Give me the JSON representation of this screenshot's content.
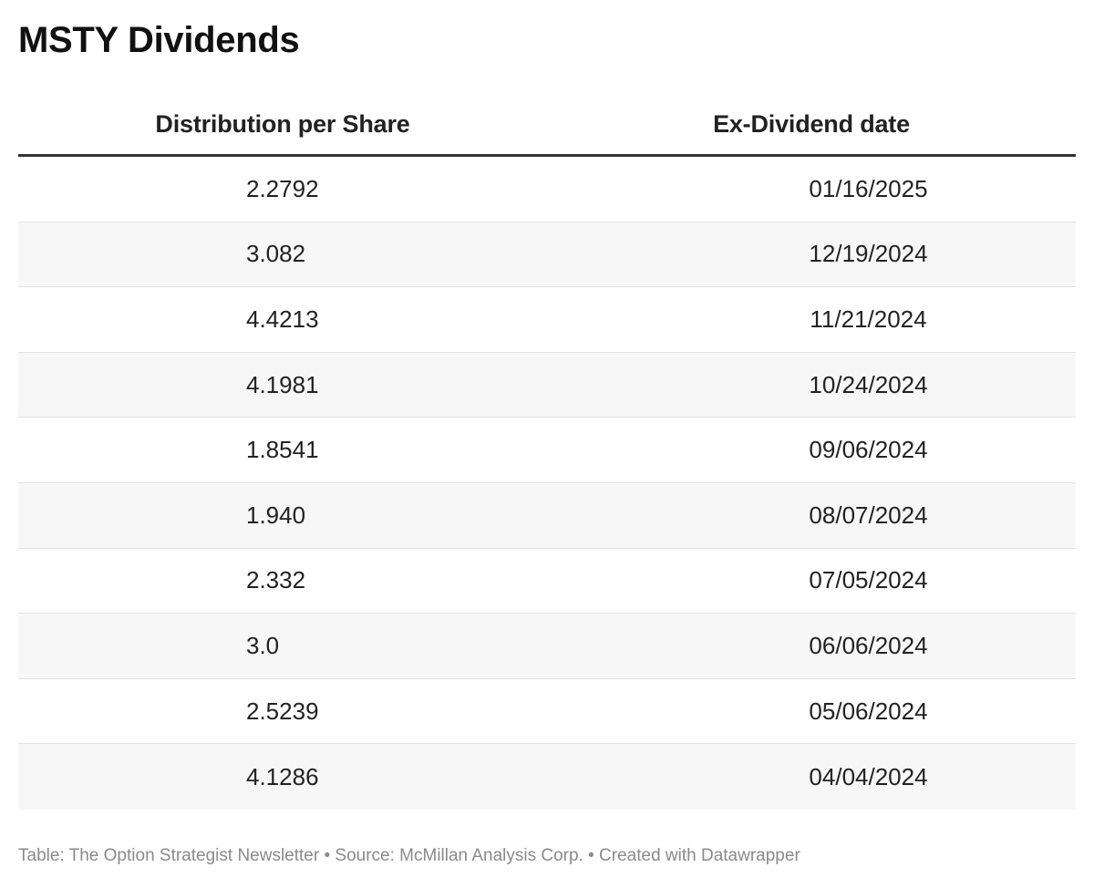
{
  "title": "MSTY Dividends",
  "chart_data": {
    "type": "table",
    "title": "MSTY Dividends",
    "columns": [
      "Distribution per Share",
      "Ex-Dividend date"
    ],
    "rows": [
      [
        "2.2792",
        "01/16/2025"
      ],
      [
        "3.082",
        "12/19/2024"
      ],
      [
        "4.4213",
        "11/21/2024"
      ],
      [
        "4.1981",
        "10/24/2024"
      ],
      [
        "1.8541",
        "09/06/2024"
      ],
      [
        "1.940",
        "08/07/2024"
      ],
      [
        "2.332",
        "07/05/2024"
      ],
      [
        "3.0",
        "06/06/2024"
      ],
      [
        "2.5239",
        "05/06/2024"
      ],
      [
        "4.1286",
        "04/04/2024"
      ]
    ],
    "zebra_color": "#f7f7f7",
    "header_rule_color": "#333333"
  },
  "footer": "Table: The Option Strategist Newsletter • Source: McMillan Analysis Corp. • Created with Datawrapper"
}
